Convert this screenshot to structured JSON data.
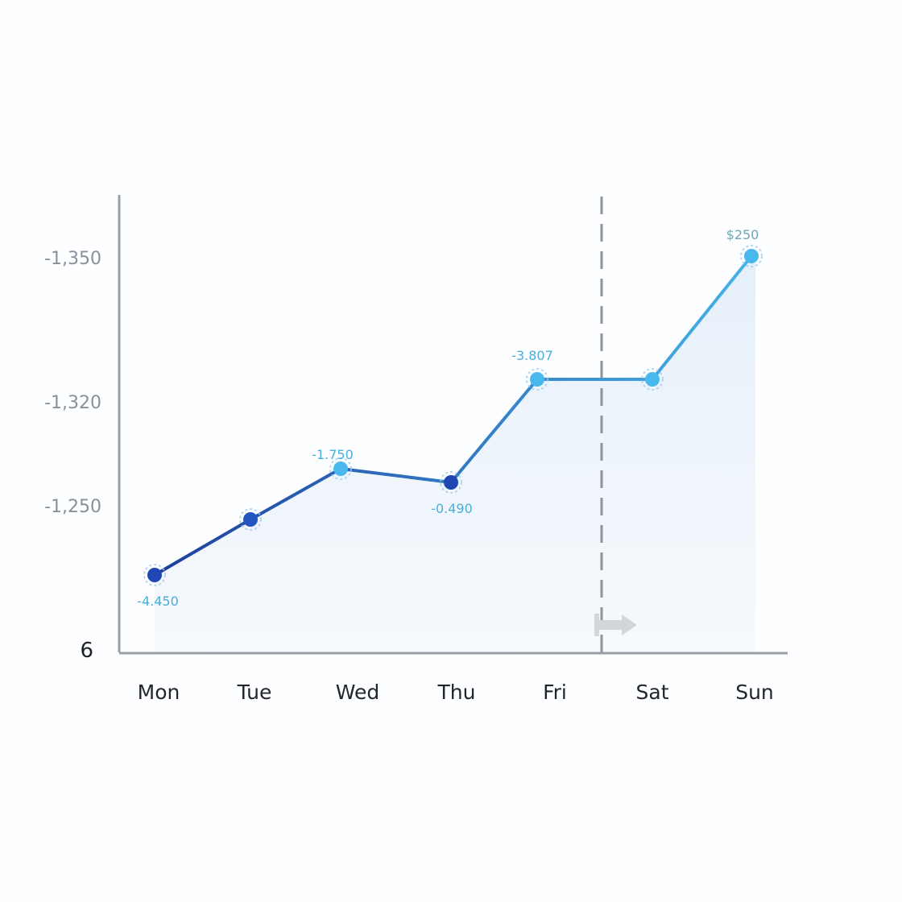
{
  "chart_data": {
    "type": "line",
    "title": "",
    "xlabel": "",
    "ylabel": "",
    "categories": [
      "Mon",
      "Tue",
      "Wed",
      "Thu",
      "Fri",
      "Sat",
      "Sun"
    ],
    "y_ticks": [
      "-1,350",
      "-1,320",
      "-1,250",
      "6"
    ],
    "series": [
      {
        "values": [
          0.9,
          1.05,
          1.2,
          1.15,
          1.52,
          1.52,
          1.85
        ],
        "data_labels": [
          "-4.450",
          "",
          "-1.750",
          "-0.490",
          "-3.807",
          "",
          "$250"
        ]
      }
    ],
    "marker": {
      "category": "Fri",
      "style": "dashed vertical line",
      "icon": "arrow-right-icon"
    },
    "area_fill": true,
    "grid": false,
    "legend": "none",
    "colors": {
      "line_start": "#1f3f9e",
      "line_end": "#45b3e6",
      "marker_dark": "#1e47b3",
      "marker_light": "#49b8ec",
      "area": "#e9f1fa",
      "axis": "#9a9ea6",
      "dashed_marker": "#8f949b",
      "arrow": "#d3d6da",
      "label_light": "#4aaed8",
      "label_muted": "#6ea6b8"
    }
  }
}
